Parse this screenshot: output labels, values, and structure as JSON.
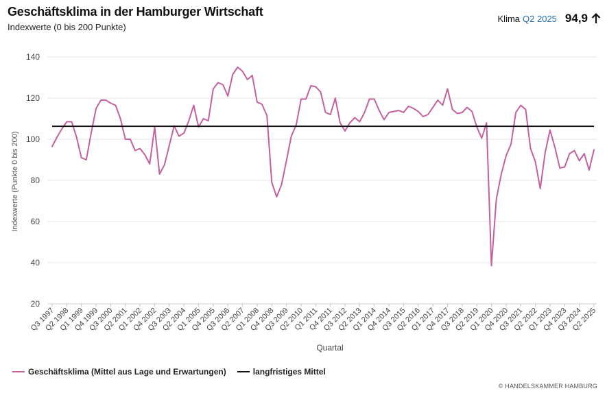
{
  "header": {
    "title": "Geschäftsklima in der Hamburger Wirtschaft",
    "subtitle": "Indexwerte (0 bis 200 Punkte)"
  },
  "kpi": {
    "label": "Klima",
    "period": "Q2 2025",
    "value": "94,9",
    "trend_icon": "arrow-up-icon"
  },
  "footer": {
    "copyright": "© HANDELSKAMMER HAMBURG"
  },
  "colors": {
    "series": "#c4609e",
    "mean": "#111111",
    "accent": "#1f6fb2",
    "grid": "#e3e3e3"
  },
  "chart_data": {
    "type": "line",
    "xlabel": "Quartal",
    "ylabel": "Indexwerte (Punkte 0 bis 200)",
    "ylim": [
      20,
      145
    ],
    "yticks": [
      20,
      40,
      60,
      80,
      100,
      120,
      140
    ],
    "grid": true,
    "legend_position": "bottom-left",
    "x_tick_labels": [
      "Q3 1997",
      "Q2 1998",
      "Q1 1999",
      "Q4 1999",
      "Q3 2000",
      "Q2 2001",
      "Q1 2002",
      "Q4 2002",
      "Q3 2003",
      "Q2 2004",
      "Q1 2005",
      "Q4 2005",
      "Q3 2006",
      "Q2 2007",
      "Q1 2008",
      "Q4 2008",
      "Q3 2009",
      "Q2 2010",
      "Q1 2011",
      "Q4 2011",
      "Q3 2012",
      "Q2 2013",
      "Q1 2014",
      "Q4 2014",
      "Q3 2015",
      "Q2 2016",
      "Q1 2017",
      "Q4 2017",
      "Q3 2018",
      "Q2 2019",
      "Q1 2020",
      "Q4 2020",
      "Q3 2021",
      "Q2 2022",
      "Q1 2023",
      "Q4 2023",
      "Q3 2024",
      "Q2 2025"
    ],
    "series": [
      {
        "name": "Geschäftsklima (Mittel aus Lage und Erwartungen)",
        "color": "#c4609e",
        "values": [
          96.5,
          101,
          105,
          108.5,
          108.5,
          101,
          91,
          90,
          103,
          115,
          119,
          119,
          117.5,
          116.5,
          110,
          100,
          100,
          94.5,
          95.5,
          92.5,
          88,
          106,
          83,
          87.5,
          97,
          106.5,
          101.5,
          103,
          109,
          116.5,
          106,
          110,
          109,
          124.5,
          127.5,
          126.5,
          121,
          131.5,
          135,
          133,
          129,
          131,
          118,
          117,
          111.5,
          79,
          72,
          78,
          89.5,
          101.5,
          107,
          119.5,
          119.5,
          126,
          125.5,
          123,
          113,
          112,
          120,
          108,
          104,
          108,
          110.5,
          108.5,
          113,
          119.5,
          119.5,
          114,
          109.5,
          113,
          113.5,
          114,
          113,
          116,
          115,
          113.5,
          111,
          112,
          115.5,
          119,
          116.5,
          124.5,
          114.5,
          112.5,
          113,
          115.5,
          113.5,
          106,
          100.5,
          108,
          38.5,
          71,
          83,
          92,
          97.5,
          113,
          116.5,
          114.5,
          95.5,
          89,
          76,
          93.5,
          104.5,
          96,
          86,
          86.5,
          93,
          94.5,
          89.5,
          93,
          85,
          94.9
        ]
      },
      {
        "name": "langfristiges Mittel",
        "color": "#111111",
        "values": [
          106.3
        ]
      }
    ]
  }
}
